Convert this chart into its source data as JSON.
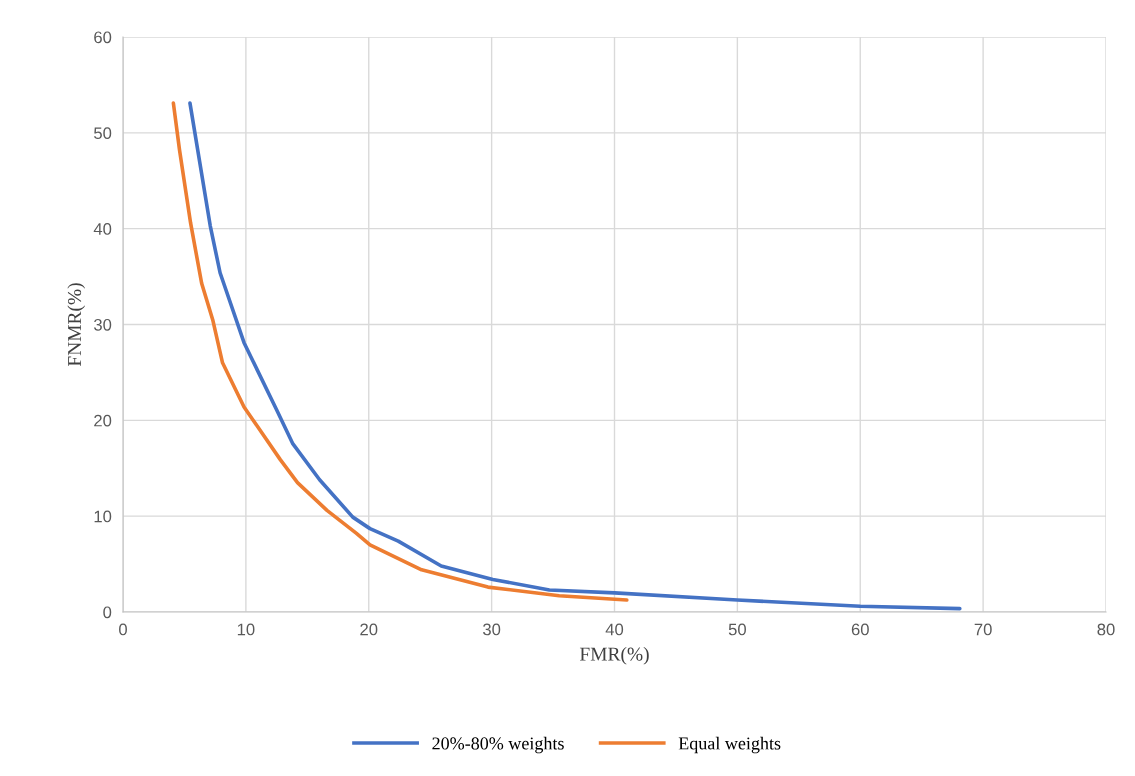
{
  "chart_data": {
    "type": "line",
    "xlabel": "FMR(%)",
    "ylabel": "FNMR(%)",
    "xlim": [
      0,
      80
    ],
    "ylim": [
      0,
      60
    ],
    "xticks": [
      0,
      10,
      20,
      30,
      40,
      50,
      60,
      70,
      80
    ],
    "yticks": [
      0,
      10,
      20,
      30,
      40,
      50,
      60
    ],
    "grid": true,
    "legend": "bottom",
    "marker": "none",
    "line_style": "solid",
    "series": [
      {
        "name": "20%-80% weights",
        "color": "#4472c4",
        "x": [
          5.45,
          7.1,
          7.9,
          9.85,
          12.5,
          13.8,
          16.0,
          18.7,
          20.1,
          22.4,
          25.9,
          30.1,
          34.7,
          40.0,
          50.0,
          60.0,
          68.1
        ],
        "values": [
          53.1,
          40.3,
          35.4,
          28.1,
          21.1,
          17.6,
          13.8,
          9.9,
          8.7,
          7.4,
          4.8,
          3.4,
          2.3,
          2.0,
          1.25,
          0.6,
          0.35
        ]
      },
      {
        "name": "Equal weights",
        "color": "#ed7d31",
        "x": [
          4.1,
          4.6,
          5.5,
          6.4,
          7.3,
          8.1,
          9.85,
          12.8,
          14.2,
          16.6,
          19.0,
          20.1,
          24.3,
          29.7,
          35.5,
          41.0
        ],
        "values": [
          53.1,
          48.2,
          40.6,
          34.3,
          30.5,
          26.0,
          21.4,
          15.9,
          13.5,
          10.6,
          8.2,
          7.0,
          4.4,
          2.6,
          1.7,
          1.25
        ]
      }
    ]
  }
}
